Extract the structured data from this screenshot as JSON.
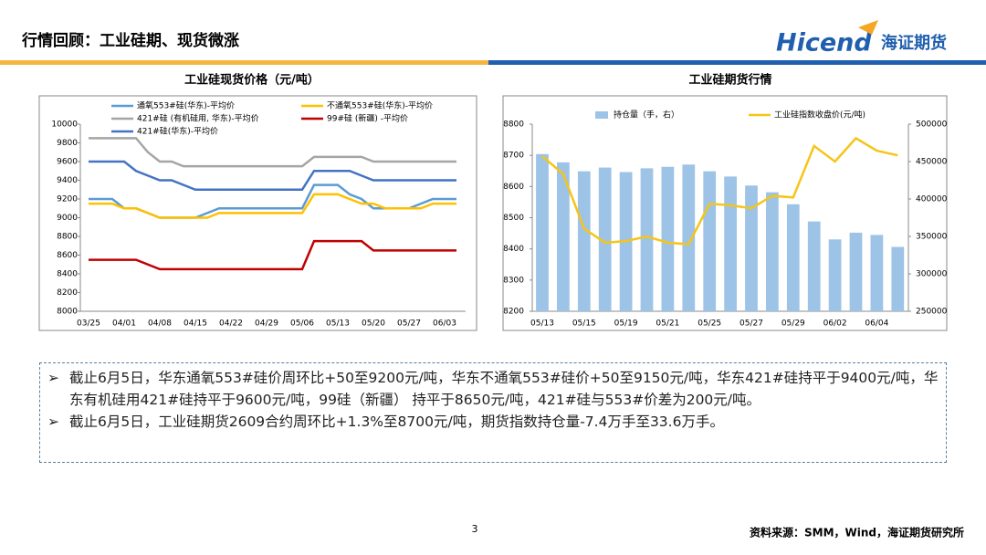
{
  "header": {
    "title": "行情回顾：工业硅期、现货微涨",
    "logo": "Hicend",
    "logo_cn": "海证期货"
  },
  "chart_data": [
    {
      "type": "line",
      "title": "工业硅现货价格（元/吨）",
      "categories": [
        "03/25",
        null,
        null,
        "04/01",
        null,
        null,
        "04/08",
        null,
        null,
        "04/15",
        null,
        null,
        "04/22",
        null,
        null,
        "04/29",
        null,
        null,
        "05/06",
        null,
        null,
        "05/13",
        null,
        null,
        "05/20",
        null,
        null,
        "05/27",
        null,
        null,
        "06/03",
        null
      ],
      "series": [
        {
          "name": "通氧553#硅(华东)-平均价",
          "color": "#5b9bd5",
          "values": [
            9200,
            9200,
            9200,
            9100,
            9100,
            9050,
            9000,
            9000,
            9000,
            9000,
            9050,
            9100,
            9100,
            9100,
            9100,
            9100,
            9100,
            9100,
            9100,
            9350,
            9350,
            9350,
            9250,
            9200,
            9100,
            9100,
            9100,
            9100,
            9150,
            9200,
            9200,
            9200
          ]
        },
        {
          "name": "不通氧553#硅(华东)-平均价",
          "color": "#ffc000",
          "values": [
            9150,
            9150,
            9150,
            9100,
            9100,
            9050,
            9000,
            9000,
            9000,
            9000,
            9000,
            9050,
            9050,
            9050,
            9050,
            9050,
            9050,
            9050,
            9050,
            9250,
            9250,
            9250,
            9200,
            9150,
            9150,
            9100,
            9100,
            9100,
            9100,
            9150,
            9150,
            9150
          ]
        },
        {
          "name": "421#硅 (有机硅用, 华东)-平均价",
          "color": "#a5a5a5",
          "values": [
            9850,
            9850,
            9850,
            9850,
            9850,
            9700,
            9600,
            9600,
            9550,
            9550,
            9550,
            9550,
            9550,
            9550,
            9550,
            9550,
            9550,
            9550,
            9550,
            9650,
            9650,
            9650,
            9650,
            9650,
            9600,
            9600,
            9600,
            9600,
            9600,
            9600,
            9600,
            9600
          ]
        },
        {
          "name": "99#硅 (新疆) -平均价",
          "color": "#c00000",
          "values": [
            8550,
            8550,
            8550,
            8550,
            8550,
            8500,
            8450,
            8450,
            8450,
            8450,
            8450,
            8450,
            8450,
            8450,
            8450,
            8450,
            8450,
            8450,
            8450,
            8750,
            8750,
            8750,
            8750,
            8750,
            8650,
            8650,
            8650,
            8650,
            8650,
            8650,
            8650,
            8650
          ]
        },
        {
          "name": "421#硅(华东)-平均价",
          "color": "#4472c4",
          "values": [
            9600,
            9600,
            9600,
            9600,
            9500,
            9450,
            9400,
            9400,
            9350,
            9300,
            9300,
            9300,
            9300,
            9300,
            9300,
            9300,
            9300,
            9300,
            9300,
            9500,
            9500,
            9500,
            9500,
            9450,
            9400,
            9400,
            9400,
            9400,
            9400,
            9400,
            9400,
            9400
          ]
        }
      ],
      "ylim": [
        8000,
        10000
      ],
      "yticks": [
        8000,
        8200,
        8400,
        8600,
        8800,
        9000,
        9200,
        9400,
        9600,
        9800,
        10000
      ]
    },
    {
      "type": "bar",
      "title": "工业硅期货行情",
      "categories": [
        "05/13",
        null,
        "05/15",
        null,
        "05/19",
        null,
        "05/21",
        null,
        "05/25",
        null,
        "05/27",
        null,
        "05/29",
        null,
        "06/02",
        null,
        "06/04",
        null
      ],
      "series": [
        {
          "name": "持仓量（手，右）",
          "type": "bar",
          "axis": "y2",
          "color": "#9dc3e6",
          "values": [
            460000,
            449000,
            437000,
            442000,
            436000,
            441000,
            443000,
            446000,
            437000,
            430000,
            418000,
            409000,
            393000,
            370000,
            346000,
            355000,
            352000,
            336000
          ]
        },
        {
          "name": "工业硅指数收盘价(元/吨)",
          "type": "line",
          "color": "#f5c518",
          "values": [
            8697,
            8640,
            8465,
            8420,
            8425,
            8440,
            8420,
            8415,
            8545,
            8540,
            8530,
            8570,
            8565,
            8730,
            8680,
            8755,
            8715,
            8700
          ]
        }
      ],
      "ylim": [
        8200,
        8800
      ],
      "yticks": [
        8200,
        8300,
        8400,
        8500,
        8600,
        8700,
        8800
      ],
      "y2lim": [
        250000,
        500000
      ],
      "y2ticks": [
        250000,
        300000,
        350000,
        400000,
        450000,
        500000
      ]
    }
  ],
  "bullets": [
    "截止6月5日，华东通氧553#硅价周环比+50至9200元/吨，华东不通氧553#硅价+50至9150元/吨，华东421#硅持平于9400元/吨，华东有机硅用421#硅持平于9600元/吨，99硅（新疆） 持平于8650元/吨，421#硅与553#价差为200元/吨。",
    "截止6月5日，工业硅期货2609合约周环比+1.3%至8700元/吨，期货指数持仓量-7.4万手至33.6万手。"
  ],
  "footer": {
    "page": 3,
    "source": "资料来源：SMM，Wind，海证期货研究所"
  }
}
